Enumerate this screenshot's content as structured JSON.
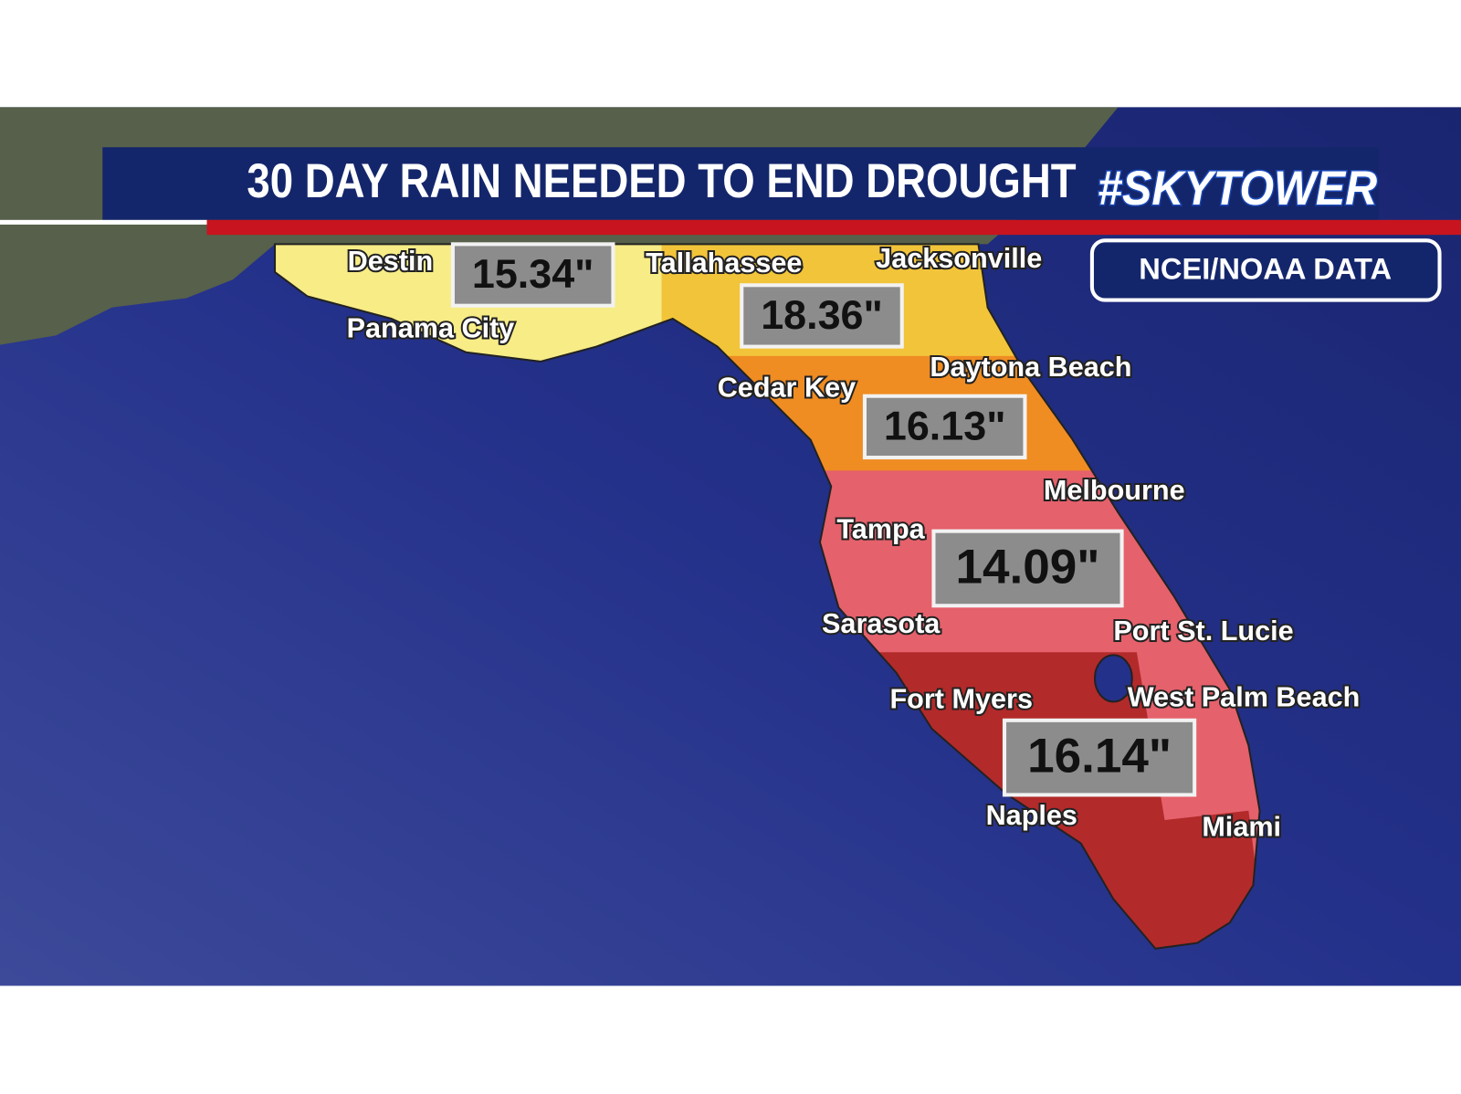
{
  "header": {
    "title": "30 DAY RAIN NEEDED TO END DROUGHT",
    "brand": "#SKYTOWER",
    "source": "NCEI/NOAA DATA"
  },
  "map": {
    "cities": [
      "Destin",
      "Panama City",
      "Tallahassee",
      "Jacksonville",
      "Cedar Key",
      "Daytona Beach",
      "Melbourne",
      "Tampa",
      "Sarasota",
      "Port St. Lucie",
      "Fort Myers",
      "West Palm Beach",
      "Naples",
      "Miami"
    ],
    "rainfall_needed": [
      "15.34\"",
      "18.36\"",
      "16.13\"",
      "14.09\"",
      "16.14\""
    ]
  }
}
